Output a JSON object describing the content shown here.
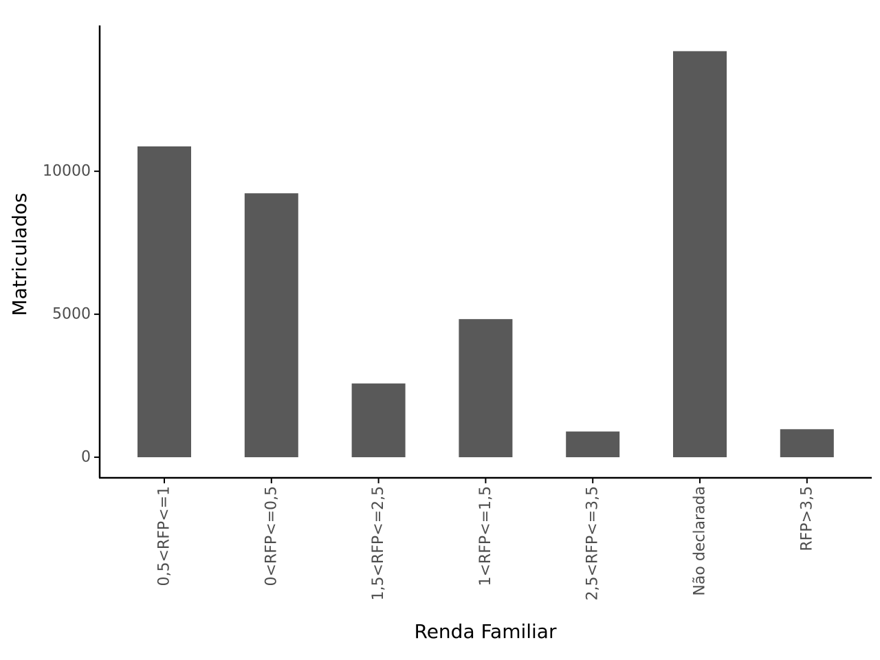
{
  "chart_data": {
    "type": "bar",
    "xlabel": "Renda Familiar",
    "ylabel": "Matriculados",
    "categories": [
      "0,5<RFP<=1",
      "0<RFP<=0,5",
      "1,5<RFP<=2,5",
      "1<RFP<=1,5",
      "2,5<RFP<=3,5",
      "Não declarada",
      "RFP>3,5"
    ],
    "values": [
      10870,
      9230,
      2580,
      4830,
      900,
      14200,
      980
    ],
    "ylim": [
      -720,
      15100
    ],
    "yticks": [
      0,
      5000,
      10000
    ],
    "ytick_labels": [
      "0",
      "5000",
      "10000"
    ],
    "grid": false,
    "bar_color": "#595959"
  }
}
